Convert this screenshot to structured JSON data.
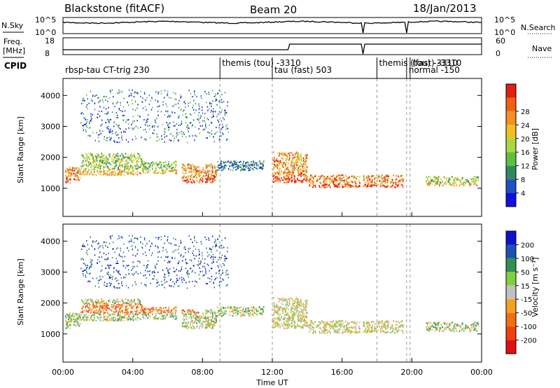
{
  "header": {
    "station": "Blackstone (fitACF)",
    "beam": "Beam 20",
    "date": "18/Jan/2013"
  },
  "top_panels": {
    "nsky_label": "N.Sky",
    "nsky_ticks": [
      "10^5",
      "10^0"
    ],
    "nsearch_label": "N.Search",
    "freq_label": "Freq.",
    "freq_unit": "[MHz]",
    "freq_ticks": [
      "18",
      "8"
    ],
    "nave_ticks": [
      "60",
      "0"
    ],
    "nave_label": "Nave",
    "cpid_label": "CPID"
  },
  "cpid_segments": [
    {
      "label": "rbsp-tau CT-trig 230",
      "start": 0.0
    },
    {
      "label": "themis (tou) -3310",
      "start": 9.0
    },
    {
      "label": "tau (fast) 503",
      "start": 12.0
    },
    {
      "label": "themis (tou) -3310",
      "start": 18.0
    },
    {
      "label": "normal -150",
      "start": 19.7
    },
    {
      "label": "(fast) -3310",
      "start": 19.9
    }
  ],
  "colorbars": {
    "power": {
      "label": "Power [dB]",
      "ticks": [
        "4",
        "8",
        "12",
        "16",
        "20",
        "24",
        "28"
      ],
      "colors": [
        "#1010e0",
        "#2050c0",
        "#2f8a60",
        "#5fbf3f",
        "#a8d840",
        "#f0c020",
        "#f59020",
        "#f06010",
        "#e02010"
      ]
    },
    "velocity": {
      "label": "Velocity [m s⁻¹]",
      "ticks": [
        "-200",
        "-100",
        "-50",
        "-15",
        "15",
        "50",
        "100",
        "200"
      ],
      "colors": [
        "#e01010",
        "#f04010",
        "#f07010",
        "#f5a020",
        "#c0c0c0",
        "#7fd040",
        "#2f9050",
        "#2050b0",
        "#1010d0"
      ]
    }
  },
  "chart_data": [
    {
      "type": "heatmap",
      "panel": "power",
      "xlabel": "",
      "ylabel": "Slant Range [km]",
      "xlim": [
        0,
        24
      ],
      "ylim": [
        90,
        4550
      ],
      "y_ticks": [
        1000,
        2000,
        3000,
        4000
      ],
      "colorbar_label": "Power [dB]",
      "scatter_echo_regions_hours_km": [
        {
          "t": [
            0.1,
            1.0
          ],
          "r": [
            1200,
            1700
          ],
          "val": "high"
        },
        {
          "t": [
            1.0,
            4.5
          ],
          "r": [
            1450,
            2150
          ],
          "val": "mid"
        },
        {
          "t": [
            4.5,
            6.5
          ],
          "r": [
            1500,
            1900
          ],
          "val": "mid"
        },
        {
          "t": [
            6.8,
            8.8
          ],
          "r": [
            1200,
            1800
          ],
          "val": "high"
        },
        {
          "t": [
            8.8,
            11.5
          ],
          "r": [
            1600,
            1900
          ],
          "val": "low"
        },
        {
          "t": [
            12.0,
            14.0
          ],
          "r": [
            1200,
            2200
          ],
          "val": "high"
        },
        {
          "t": [
            14.0,
            17.0
          ],
          "r": [
            1050,
            1450
          ],
          "val": "high"
        },
        {
          "t": [
            17.2,
            19.5
          ],
          "r": [
            1050,
            1450
          ],
          "val": "high"
        },
        {
          "t": [
            20.8,
            23.8
          ],
          "r": [
            1100,
            1400
          ],
          "val": "mid"
        }
      ]
    },
    {
      "type": "heatmap",
      "panel": "velocity",
      "xlabel": "Time UT",
      "ylabel": "Slant Range [km]",
      "xlim": [
        0,
        24
      ],
      "ylim": [
        90,
        4550
      ],
      "x_ticks": [
        "00:00",
        "04:00",
        "08:00",
        "12:00",
        "16:00",
        "20:00",
        "00:00"
      ],
      "y_ticks": [
        1000,
        2000,
        3000,
        4000
      ],
      "colorbar_label": "Velocity [m s⁻¹]"
    }
  ]
}
